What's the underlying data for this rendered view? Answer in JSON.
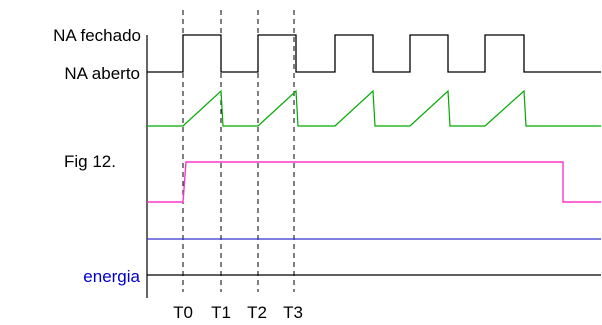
{
  "figure": {
    "caption": "Fig 12.",
    "label_closed": "NA fechado",
    "label_open": "NA aberto",
    "label_energy": "energia",
    "time_marks": [
      "T0",
      "T1",
      "T2",
      "T3"
    ]
  },
  "colors": {
    "contact_signal": "#000000",
    "ramp_signal": "#00aa00",
    "pulse_signal": "#ff33cc",
    "level_signal": "#3333cc",
    "baseline": "#000000",
    "energy_label": "#0000cc",
    "guide_lines": "#000000"
  }
}
